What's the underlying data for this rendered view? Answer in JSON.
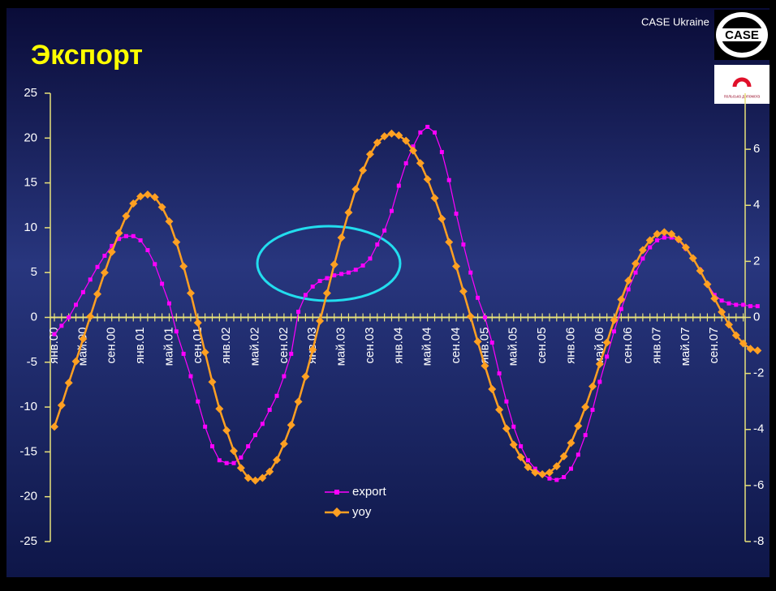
{
  "chart_data": {
    "type": "line",
    "title": "Экспорт",
    "source": "CASE Ukraine",
    "logo_text": "CASE",
    "logo2_text": "польська допомога",
    "categories": [
      "янв.00",
      null,
      null,
      null,
      "май.00",
      null,
      null,
      null,
      "сен.00",
      null,
      null,
      null,
      "янв.01",
      null,
      null,
      null,
      "май.01",
      null,
      null,
      null,
      "сен.01",
      null,
      null,
      null,
      "янв.02",
      null,
      null,
      null,
      "май.02",
      null,
      null,
      null,
      "сен.02",
      null,
      null,
      null,
      "янв.03",
      null,
      null,
      null,
      "май.03",
      null,
      null,
      null,
      "сен.03",
      null,
      null,
      null,
      "янв.04",
      null,
      null,
      null,
      "май.04",
      null,
      null,
      null,
      "сен.04",
      null,
      null,
      null,
      "янв.05",
      null,
      null,
      null,
      "май.05",
      null,
      null,
      null,
      "сен.05",
      null,
      null,
      null,
      "янв.06",
      null,
      null,
      null,
      "май.06",
      null,
      null,
      null,
      "сен.06",
      null,
      null,
      null,
      "янв.07",
      null,
      null,
      null,
      "май.07",
      null,
      null,
      null,
      "сен.07",
      null,
      null,
      null,
      null,
      null,
      null
    ],
    "series": [
      {
        "name": "export",
        "color": "#ff00ff",
        "marker": "square",
        "axis": "y2",
        "values": [
          -0.6,
          -0.3,
          0.0,
          0.45,
          0.9,
          1.35,
          1.8,
          2.2,
          2.55,
          2.8,
          2.9,
          2.9,
          2.75,
          2.4,
          1.9,
          1.2,
          0.5,
          -0.5,
          -1.3,
          -2.1,
          -3.0,
          -3.9,
          -4.6,
          -5.1,
          -5.2,
          -5.2,
          -5.0,
          -4.6,
          -4.2,
          -3.8,
          -3.3,
          -2.8,
          -2.1,
          -1.3,
          0.2,
          0.8,
          1.1,
          1.3,
          1.4,
          1.5,
          1.55,
          1.6,
          1.7,
          1.85,
          2.1,
          2.6,
          3.1,
          3.8,
          4.7,
          5.5,
          6.1,
          6.6,
          6.8,
          6.6,
          5.9,
          4.9,
          3.7,
          2.6,
          1.6,
          0.7,
          0.0,
          -0.9,
          -2.0,
          -3.0,
          -3.9,
          -4.6,
          -5.1,
          -5.4,
          -5.6,
          -5.75,
          -5.8,
          -5.7,
          -5.4,
          -4.9,
          -4.2,
          -3.3,
          -2.3,
          -1.4,
          -0.5,
          0.3,
          1.0,
          1.6,
          2.1,
          2.5,
          2.75,
          2.85,
          2.85,
          2.75,
          2.45,
          2.1,
          1.7,
          1.2,
          0.8,
          0.6,
          0.5,
          0.45,
          0.45,
          0.4,
          0.4
        ]
      },
      {
        "name": "yoy",
        "color": "#ffa022",
        "marker": "diamond",
        "values": [
          -12.2,
          -9.8,
          -7.3,
          -4.9,
          -2.4,
          0.1,
          2.6,
          5.0,
          7.3,
          9.4,
          11.3,
          12.7,
          13.5,
          13.7,
          13.4,
          12.3,
          10.7,
          8.4,
          5.7,
          2.7,
          -0.6,
          -3.9,
          -7.2,
          -10.2,
          -12.6,
          -14.9,
          -16.8,
          -17.9,
          -18.2,
          -17.9,
          -17.2,
          -15.9,
          -14.1,
          -12.0,
          -9.4,
          -6.6,
          -3.6,
          -0.4,
          2.7,
          5.9,
          8.9,
          11.7,
          14.3,
          16.4,
          18.2,
          19.5,
          20.2,
          20.5,
          20.3,
          19.7,
          18.6,
          17.2,
          15.4,
          13.3,
          11.0,
          8.4,
          5.7,
          2.9,
          0.1,
          -2.7,
          -5.4,
          -8.0,
          -10.3,
          -12.4,
          -14.2,
          -15.6,
          -16.7,
          -17.3,
          -17.5,
          -17.3,
          -16.6,
          -15.5,
          -14.0,
          -12.1,
          -10.0,
          -7.7,
          -5.2,
          -2.8,
          -0.3,
          2.0,
          4.1,
          6.0,
          7.5,
          8.6,
          9.3,
          9.5,
          9.3,
          8.7,
          7.8,
          6.6,
          5.2,
          3.7,
          2.1,
          0.6,
          -0.8,
          -2.0,
          -2.9,
          -3.5,
          -3.7
        ]
      }
    ],
    "ylim": [
      -25,
      25
    ],
    "yticks": [
      -25,
      -20,
      -15,
      -10,
      -5,
      0,
      5,
      10,
      15,
      20,
      25
    ],
    "y2lim": [
      -8,
      8
    ],
    "y2ticks": [
      -8,
      -6,
      -4,
      -2,
      0,
      2,
      4,
      6
    ],
    "legend": "lower center"
  }
}
